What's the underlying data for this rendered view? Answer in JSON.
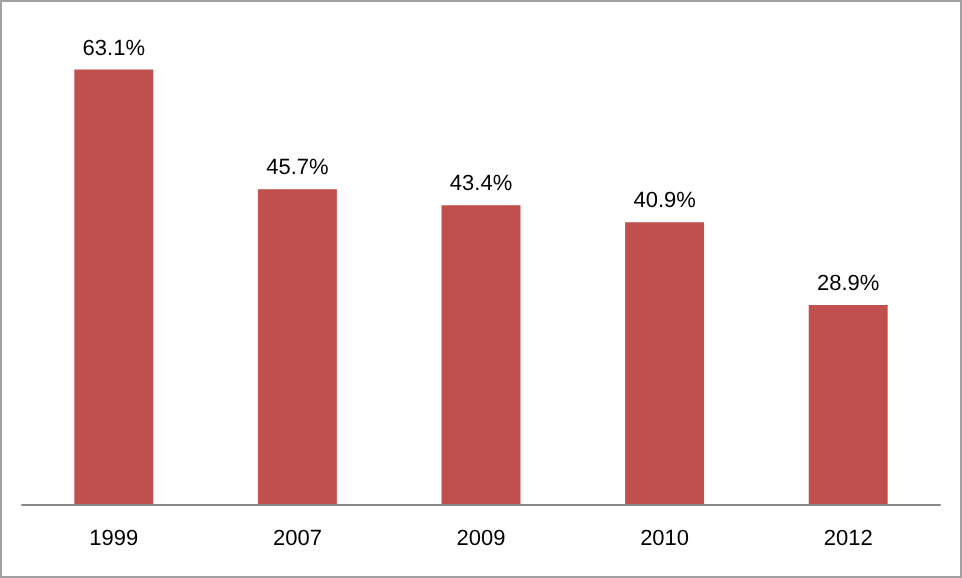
{
  "chart_data": {
    "type": "bar",
    "categories": [
      "1999",
      "2007",
      "2009",
      "2010",
      "2012"
    ],
    "series": [
      {
        "color": "#c0504d",
        "values": [
          63.1,
          45.7,
          43.4,
          40.9,
          28.9
        ],
        "value_labels": [
          "63.1%",
          "45.7%",
          "43.4%",
          "40.9%",
          "28.9%"
        ]
      }
    ]
  }
}
